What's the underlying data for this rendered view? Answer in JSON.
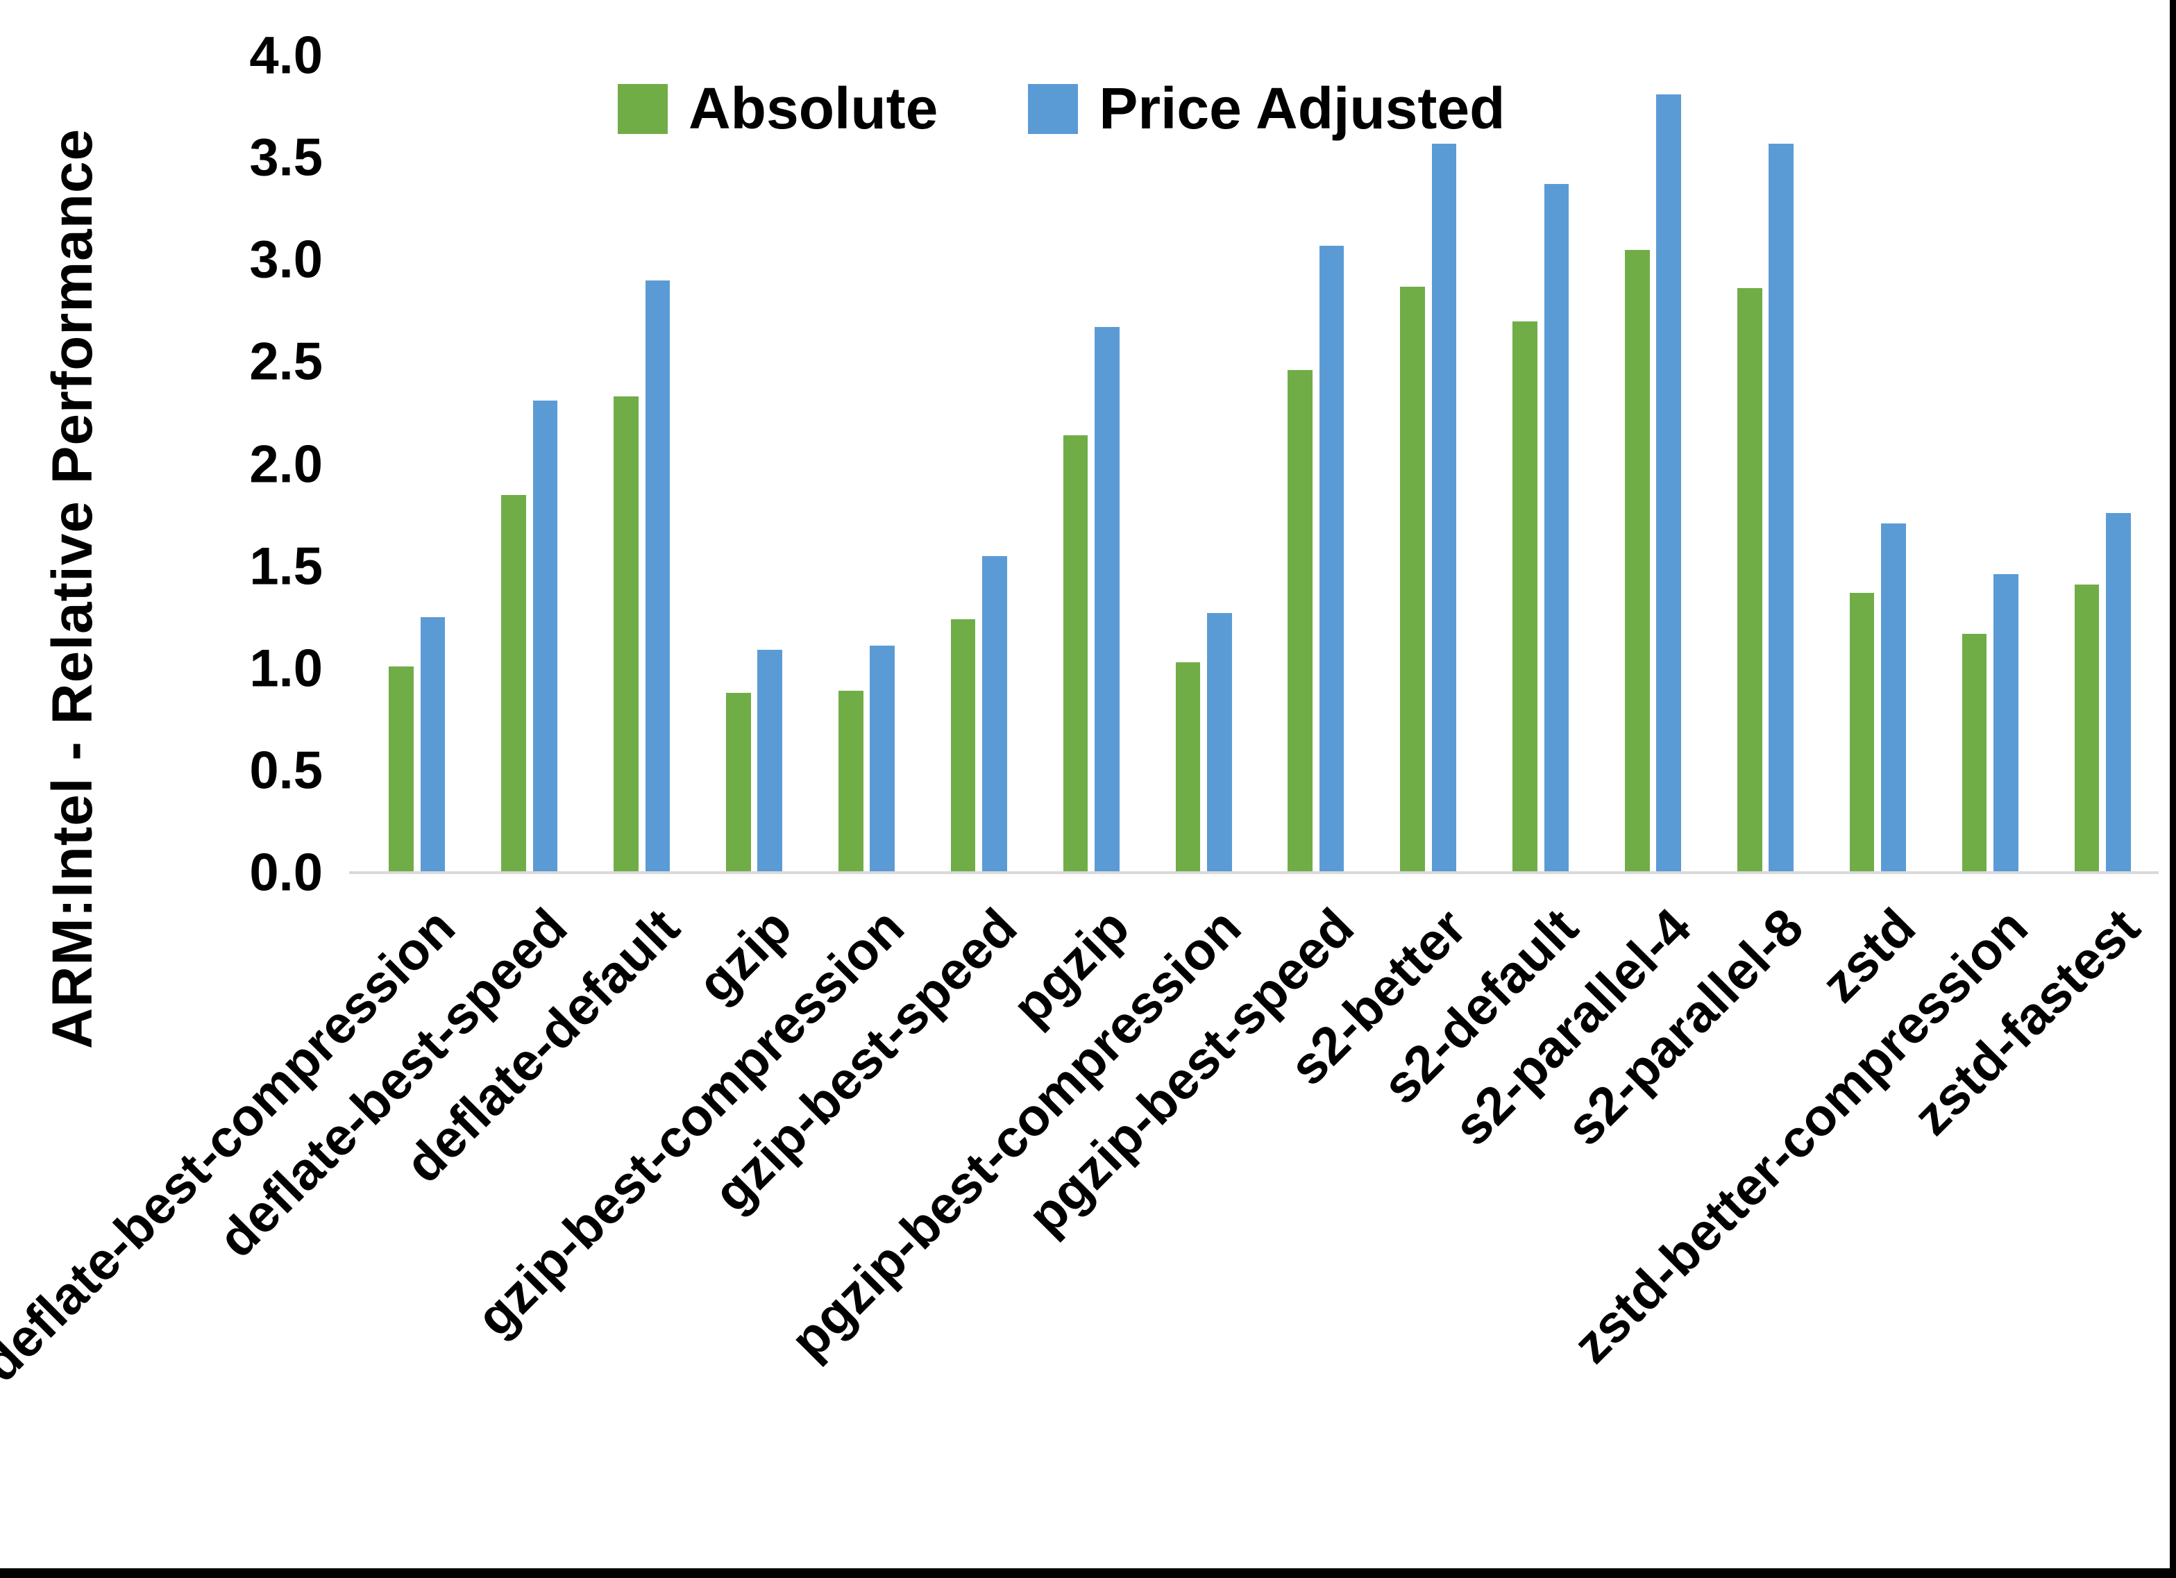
{
  "chart_data": {
    "type": "bar",
    "title": "",
    "ylabel": "ARM:Intel - Relative Performance",
    "xlabel": "",
    "ylim": [
      0.0,
      4.0
    ],
    "ytick_labels": [
      "4.0",
      "3.5",
      "3.0",
      "2.5",
      "2.0",
      "1.5",
      "1.0",
      "0.5",
      "0.0"
    ],
    "ytick_values": [
      4.0,
      3.5,
      3.0,
      2.5,
      2.0,
      1.5,
      1.0,
      0.5,
      0.0
    ],
    "grid": false,
    "legend_position": "top-center",
    "categories": [
      "deflate-best-compression",
      "deflate-best-speed",
      "deflate-default",
      "gzip",
      "gzip-best-compression",
      "gzip-best-speed",
      "pgzip",
      "pgzip-best-compression",
      "pgzip-best-speed",
      "s2-better",
      "s2-default",
      "s2-parallel-4",
      "s2-parallel-8",
      "zstd",
      "zstd-better-compression",
      "zstd-fastest"
    ],
    "series": [
      {
        "name": "Absolute",
        "color": "#70AD47",
        "values": [
          1.01,
          1.85,
          2.33,
          0.88,
          0.89,
          1.24,
          2.14,
          1.03,
          2.46,
          2.87,
          2.7,
          3.05,
          2.86,
          1.37,
          1.17,
          1.41
        ]
      },
      {
        "name": "Price Adjusted",
        "color": "#5B9BD5",
        "values": [
          1.25,
          2.31,
          2.9,
          1.09,
          1.11,
          1.55,
          2.67,
          1.27,
          3.07,
          3.57,
          3.37,
          3.81,
          3.57,
          1.71,
          1.46,
          1.76
        ]
      }
    ],
    "axis_line_color": "#d9d9d9",
    "text_color": "#000000"
  }
}
